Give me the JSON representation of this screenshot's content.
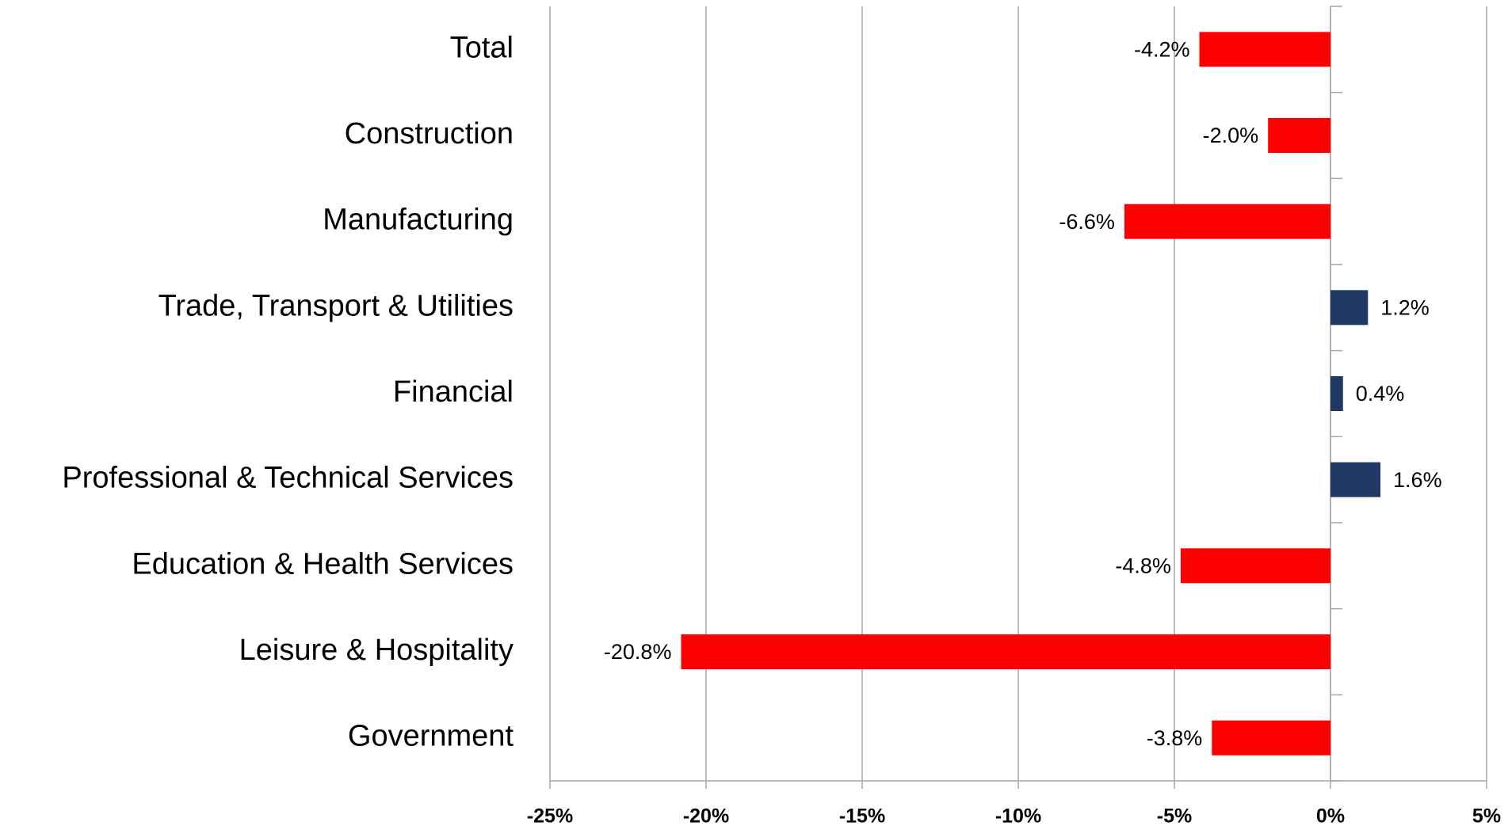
{
  "chart_data": {
    "type": "hbar",
    "categories": [
      "Total",
      "Construction",
      "Manufacturing",
      "Trade, Transport & Utilities",
      "Financial ",
      "Professional & Technical Services",
      "Education & Health Services",
      "Leisure & Hospitality",
      "Government"
    ],
    "values": [
      -4.2,
      -2.0,
      -6.6,
      1.2,
      0.4,
      1.6,
      -4.8,
      -20.8,
      -3.8
    ],
    "value_labels": [
      "-4.2%",
      "-2.0%",
      "-6.6%",
      "1.2%",
      "0.4%",
      "1.6%",
      "-4.8%",
      "-20.8%",
      "-3.8%"
    ],
    "negative_color": "#ff0000",
    "positive_color": "#1f3864",
    "xlim": [
      -25,
      5
    ],
    "xticks": [
      {
        "value": -25,
        "label": "-25%"
      },
      {
        "value": -20,
        "label": "-20%"
      },
      {
        "value": -15,
        "label": "-15%"
      },
      {
        "value": -10,
        "label": "-10%"
      },
      {
        "value": -5,
        "label": "-5%"
      },
      {
        "value": 0,
        "label": "0%"
      },
      {
        "value": 5,
        "label": "5%"
      }
    ],
    "grid": true
  }
}
